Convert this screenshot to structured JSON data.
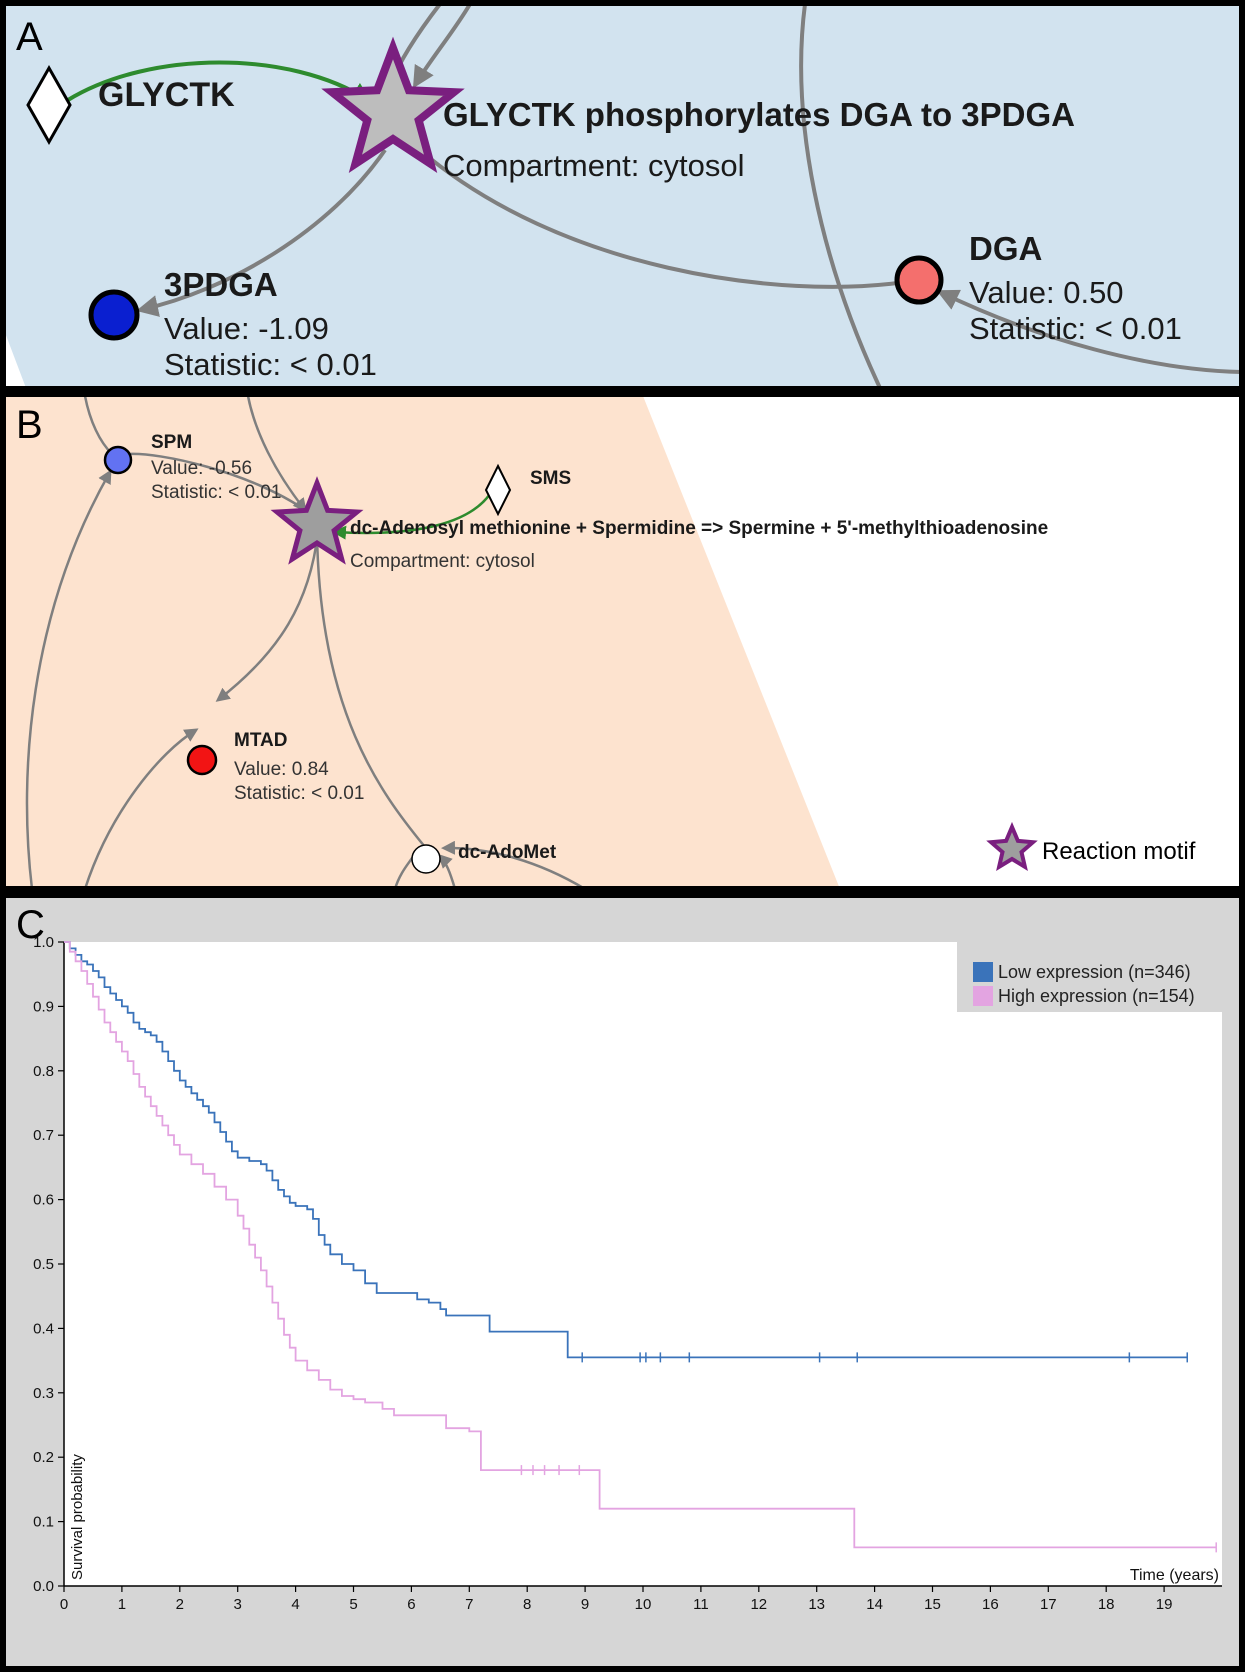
{
  "panel_a": {
    "letter": "A",
    "enzyme": "GLYCTK",
    "reaction_title": "GLYCTK phosphorylates DGA to 3PDGA",
    "reaction_compartment": "Compartment: cytosol",
    "node_3pdga": {
      "name": "3PDGA",
      "value": "Value: -1.09",
      "statistic": "Statistic: < 0.01"
    },
    "node_dga": {
      "name": "DGA",
      "value": "Value: 0.50",
      "statistic": "Statistic: < 0.01"
    },
    "colors": {
      "background": "#d2e3ef",
      "enzyme_edge": "#2e8b2e",
      "star": "#7a1f7f",
      "node_3pdga": "#0a1fd0",
      "node_dga": "#f46f6d"
    }
  },
  "panel_b": {
    "letter": "B",
    "enzyme": "SMS",
    "reaction_title": "dc-Adenosyl methionine + Spermidine => Spermine + 5'-methylthioadenosine",
    "reaction_compartment": "Compartment: cytosol",
    "node_spm": {
      "name": "SPM",
      "value": "Value: -0.56",
      "statistic": "Statistic: < 0.01"
    },
    "node_mtad": {
      "name": "MTAD",
      "value": "Value: 0.84",
      "statistic": "Statistic: < 0.01"
    },
    "node_dcadomet": {
      "name": "dc-AdoMet"
    },
    "legend_label": "Reaction motif",
    "colors": {
      "background": "#fde3cf",
      "node_spm": "#6272f2",
      "node_mtad": "#f21414",
      "node_dcadomet": "#ffffff"
    }
  },
  "panel_c": {
    "letter": "C",
    "chart_data": {
      "type": "line",
      "xlabel": "Time (years)",
      "ylabel": "Survival probability",
      "xlim": [
        0,
        20
      ],
      "ylim": [
        0,
        1.0
      ],
      "x_ticks": [
        0,
        1,
        2,
        3,
        4,
        5,
        6,
        7,
        8,
        9,
        10,
        11,
        12,
        13,
        14,
        15,
        16,
        17,
        18,
        19
      ],
      "y_ticks": [
        "0.0",
        "0.1",
        "0.2",
        "0.3",
        "0.4",
        "0.5",
        "0.6",
        "0.7",
        "0.8",
        "0.9",
        "1.0"
      ],
      "legend_position": "top-right",
      "series": [
        {
          "name": "Low expression (n=346)",
          "color": "#3a73ba",
          "points": [
            [
              0,
              1.0
            ],
            [
              0.1,
              0.99
            ],
            [
              0.2,
              0.98
            ],
            [
              0.3,
              0.97
            ],
            [
              0.4,
              0.965
            ],
            [
              0.5,
              0.955
            ],
            [
              0.6,
              0.945
            ],
            [
              0.7,
              0.93
            ],
            [
              0.8,
              0.92
            ],
            [
              0.9,
              0.91
            ],
            [
              1.0,
              0.9
            ],
            [
              1.1,
              0.89
            ],
            [
              1.2,
              0.875
            ],
            [
              1.3,
              0.865
            ],
            [
              1.4,
              0.86
            ],
            [
              1.5,
              0.855
            ],
            [
              1.6,
              0.845
            ],
            [
              1.7,
              0.83
            ],
            [
              1.8,
              0.815
            ],
            [
              1.9,
              0.8
            ],
            [
              2.0,
              0.785
            ],
            [
              2.1,
              0.775
            ],
            [
              2.2,
              0.765
            ],
            [
              2.3,
              0.755
            ],
            [
              2.4,
              0.745
            ],
            [
              2.5,
              0.735
            ],
            [
              2.6,
              0.72
            ],
            [
              2.7,
              0.705
            ],
            [
              2.8,
              0.69
            ],
            [
              2.9,
              0.675
            ],
            [
              3.0,
              0.665
            ],
            [
              3.2,
              0.66
            ],
            [
              3.4,
              0.655
            ],
            [
              3.5,
              0.645
            ],
            [
              3.6,
              0.63
            ],
            [
              3.7,
              0.615
            ],
            [
              3.8,
              0.605
            ],
            [
              3.9,
              0.595
            ],
            [
              4.0,
              0.59
            ],
            [
              4.2,
              0.585
            ],
            [
              4.3,
              0.57
            ],
            [
              4.4,
              0.545
            ],
            [
              4.5,
              0.53
            ],
            [
              4.6,
              0.515
            ],
            [
              4.8,
              0.5
            ],
            [
              5.0,
              0.49
            ],
            [
              5.2,
              0.47
            ],
            [
              5.4,
              0.455
            ],
            [
              5.6,
              0.455
            ],
            [
              6.0,
              0.455
            ],
            [
              6.1,
              0.445
            ],
            [
              6.3,
              0.44
            ],
            [
              6.5,
              0.43
            ],
            [
              6.6,
              0.42
            ],
            [
              7.0,
              0.42
            ],
            [
              7.3,
              0.42
            ],
            [
              7.35,
              0.395
            ],
            [
              8.0,
              0.395
            ],
            [
              8.65,
              0.395
            ],
            [
              8.7,
              0.355
            ],
            [
              10.0,
              0.355
            ],
            [
              15.0,
              0.355
            ],
            [
              19.4,
              0.355
            ]
          ],
          "censor_x": [
            8.95,
            9.95,
            10.05,
            10.3,
            10.8,
            13.05,
            13.7,
            18.4,
            19.4
          ]
        },
        {
          "name": "High expression (n=154)",
          "color": "#e3a4e1",
          "points": [
            [
              0,
              1.0
            ],
            [
              0.1,
              0.985
            ],
            [
              0.2,
              0.97
            ],
            [
              0.3,
              0.955
            ],
            [
              0.4,
              0.935
            ],
            [
              0.5,
              0.915
            ],
            [
              0.6,
              0.895
            ],
            [
              0.7,
              0.875
            ],
            [
              0.8,
              0.86
            ],
            [
              0.9,
              0.845
            ],
            [
              1.0,
              0.83
            ],
            [
              1.1,
              0.815
            ],
            [
              1.2,
              0.795
            ],
            [
              1.3,
              0.775
            ],
            [
              1.4,
              0.76
            ],
            [
              1.5,
              0.745
            ],
            [
              1.6,
              0.73
            ],
            [
              1.7,
              0.715
            ],
            [
              1.8,
              0.7
            ],
            [
              1.9,
              0.685
            ],
            [
              2.0,
              0.67
            ],
            [
              2.2,
              0.655
            ],
            [
              2.4,
              0.64
            ],
            [
              2.6,
              0.62
            ],
            [
              2.8,
              0.6
            ],
            [
              3.0,
              0.575
            ],
            [
              3.1,
              0.555
            ],
            [
              3.2,
              0.53
            ],
            [
              3.3,
              0.51
            ],
            [
              3.4,
              0.49
            ],
            [
              3.5,
              0.465
            ],
            [
              3.6,
              0.44
            ],
            [
              3.7,
              0.415
            ],
            [
              3.8,
              0.39
            ],
            [
              3.9,
              0.37
            ],
            [
              4.0,
              0.35
            ],
            [
              4.2,
              0.335
            ],
            [
              4.4,
              0.32
            ],
            [
              4.6,
              0.305
            ],
            [
              4.8,
              0.295
            ],
            [
              5.0,
              0.29
            ],
            [
              5.2,
              0.285
            ],
            [
              5.5,
              0.275
            ],
            [
              5.7,
              0.265
            ],
            [
              6.5,
              0.265
            ],
            [
              6.6,
              0.245
            ],
            [
              7.0,
              0.24
            ],
            [
              7.15,
              0.24
            ],
            [
              7.2,
              0.18
            ],
            [
              8.0,
              0.18
            ],
            [
              9.2,
              0.18
            ],
            [
              9.25,
              0.12
            ],
            [
              10.0,
              0.12
            ],
            [
              13.6,
              0.12
            ],
            [
              13.65,
              0.06
            ],
            [
              19.9,
              0.06
            ]
          ],
          "censor_x": [
            7.9,
            8.1,
            8.3,
            8.55,
            8.9,
            19.9
          ]
        }
      ]
    },
    "colors": {
      "frame": "#d6d6d6"
    }
  }
}
